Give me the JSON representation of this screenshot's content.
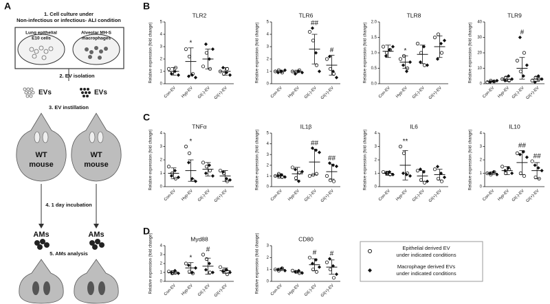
{
  "panel_labels": [
    "A",
    "B",
    "C",
    "D"
  ],
  "diagram": {
    "step1": [
      "1. Cell culture under",
      "Non-infectious or infectious- ALI condition"
    ],
    "cells": [
      [
        "Lung epithelial",
        "E10 cells"
      ],
      [
        "Alveolar MH-S",
        "macrophages"
      ]
    ],
    "step2": "2. EV isolation",
    "ev": [
      "EVs",
      "EVs"
    ],
    "step3": "3. EV instillation",
    "mouse": [
      "WT",
      "mouse"
    ],
    "step4": "4. 1 day incubation",
    "ams": "AMs",
    "step5": "5. AMs analysis"
  },
  "legend": [
    [
      "Epithelial derived EV",
      "under indicated conditions"
    ],
    [
      "Macrophage derived EVs",
      "under indicated conditions"
    ]
  ],
  "chart_data": [
    {
      "type": "dot",
      "title": "TLR2",
      "ylabel": "Relative expression (fold change)",
      "categories": [
        "Con-EV",
        "Hyp-EV",
        "GI(-)-EV",
        "GI(+)-EV"
      ],
      "ylim": [
        0,
        5
      ],
      "yticks": [
        0,
        1,
        2,
        3,
        4,
        5
      ],
      "mean": [
        1.0,
        1.8,
        2.0,
        1.0
      ],
      "sd": [
        0.3,
        1.1,
        0.8,
        0.3
      ],
      "series": [
        {
          "marker": "circle",
          "values": [
            [
              1.2,
              0.9,
              1.3
            ],
            [
              2.8,
              2.2,
              0.8
            ],
            [
              1.4,
              2.5,
              1.2
            ],
            [
              1.0,
              0.8,
              1.2
            ]
          ]
        },
        {
          "marker": "diamond",
          "values": [
            [
              0.8,
              1.0,
              0.7
            ],
            [
              0.6,
              0.7,
              0.5
            ],
            [
              3.2,
              2.0,
              2.8
            ],
            [
              1.3,
              0.9,
              0.7
            ]
          ]
        }
      ],
      "annotations": [
        null,
        "*",
        null,
        null
      ]
    },
    {
      "type": "dot",
      "title": "TLR6",
      "ylabel": "Relative expression (fold change)",
      "categories": [
        "Con-EV",
        "Hyp-EV",
        "GI(-)-EV",
        "GI(+)-EV"
      ],
      "ylim": [
        0,
        5
      ],
      "yticks": [
        0,
        1,
        2,
        3,
        4,
        5
      ],
      "mean": [
        1.0,
        1.0,
        2.8,
        1.5
      ],
      "sd": [
        0.1,
        0.1,
        1.2,
        0.8
      ],
      "series": [
        {
          "marker": "circle",
          "values": [
            [
              1.0,
              1.1,
              0.9
            ],
            [
              1.0,
              0.9,
              1.1
            ],
            [
              4.2,
              3.5,
              1.5
            ],
            [
              2.0,
              1.2,
              0.8
            ]
          ]
        },
        {
          "marker": "diamond",
          "values": [
            [
              0.9,
              1.0,
              1.1
            ],
            [
              0.8,
              1.0,
              0.9
            ],
            [
              4.5,
              2.5,
              1.0
            ],
            [
              2.2,
              1.0,
              0.5
            ]
          ]
        }
      ],
      "annotations": [
        null,
        null,
        "##",
        "#"
      ]
    },
    {
      "type": "dot",
      "title": "TLR8",
      "ylabel": "Relative expression (fold change)",
      "categories": [
        "Con-EV",
        "Hyp-EV",
        "GI(-)-EV",
        "GI(+)-EV"
      ],
      "ylim": [
        0,
        2
      ],
      "yticks": [
        {
          "value": 0,
          "label": "0.0"
        },
        0.5,
        {
          "value": 1,
          "label": "1.0"
        },
        1.5,
        {
          "value": 2,
          "label": "2.0"
        }
      ],
      "mean": [
        1.05,
        0.7,
        0.95,
        1.2
      ],
      "sd": [
        0.2,
        0.2,
        0.3,
        0.35
      ],
      "series": [
        {
          "marker": "circle",
          "values": [
            [
              1.2,
              1.0,
              1.1
            ],
            [
              0.8,
              0.9,
              0.5
            ],
            [
              1.3,
              1.0,
              0.6
            ],
            [
              1.5,
              1.6,
              1.0
            ]
          ]
        },
        {
          "marker": "diamond",
          "values": [
            [
              0.9,
              1.1,
              1.2
            ],
            [
              0.6,
              0.4,
              0.7
            ],
            [
              0.7,
              1.2,
              0.6
            ],
            [
              0.8,
              1.3,
              1.4
            ]
          ]
        }
      ],
      "annotations": [
        null,
        "*",
        null,
        null
      ]
    },
    {
      "type": "dot",
      "title": "TLR9",
      "ylabel": "Relative expression (fold change)",
      "categories": [
        "Con-EV",
        "Hyp-EV",
        "GI(-)-EV",
        "GI(+)-EV"
      ],
      "ylim": [
        0,
        40
      ],
      "yticks": [
        0,
        10,
        20,
        30,
        40
      ],
      "mean": [
        1.5,
        3,
        10,
        3
      ],
      "sd": [
        0.5,
        1.5,
        7,
        1.5
      ],
      "series": [
        {
          "marker": "circle",
          "values": [
            [
              1,
              2,
              1.5
            ],
            [
              3,
              4,
              2
            ],
            [
              15,
              8,
              20
            ],
            [
              2,
              4,
              3
            ]
          ]
        },
        {
          "marker": "diamond",
          "values": [
            [
              1,
              1.5,
              2
            ],
            [
              2,
              5,
              3
            ],
            [
              30,
              5,
              12
            ],
            [
              1,
              5,
              3
            ]
          ]
        }
      ],
      "annotations": [
        null,
        null,
        "#",
        null
      ]
    },
    {
      "type": "dot",
      "title": "TNFα",
      "ylabel": "Relative expression (fold change)",
      "categories": [
        "Con-EV",
        "Hyp-EV",
        "GI(-)-EV",
        "GI(+)-EV"
      ],
      "ylim": [
        0,
        4
      ],
      "yticks": [
        0,
        1,
        2,
        3,
        4
      ],
      "mean": [
        1.0,
        1.2,
        1.3,
        0.8
      ],
      "sd": [
        0.4,
        0.8,
        0.5,
        0.4
      ],
      "series": [
        {
          "marker": "circle",
          "values": [
            [
              1.5,
              1.0,
              0.6
            ],
            [
              3.0,
              2.5,
              0.5
            ],
            [
              1.8,
              1.5,
              1.2
            ],
            [
              1.2,
              1.0,
              0.4
            ]
          ]
        },
        {
          "marker": "diamond",
          "values": [
            [
              0.8,
              1.2,
              0.7
            ],
            [
              1.8,
              0.6,
              0.4
            ],
            [
              1.0,
              1.6,
              0.8
            ],
            [
              1.1,
              0.6,
              0.5
            ]
          ]
        }
      ],
      "annotations": [
        null,
        "*",
        null,
        null
      ]
    },
    {
      "type": "dot",
      "title": "IL1β",
      "ylabel": "Relative expression (fold change)",
      "categories": [
        "Con-EV",
        "Hyp-EV",
        "GI(-)-EV",
        "GI(+)-EV"
      ],
      "ylim": [
        0,
        5
      ],
      "yticks": [
        0,
        1,
        2,
        3,
        4,
        5
      ],
      "mean": [
        1.0,
        1.2,
        2.3,
        1.4
      ],
      "sd": [
        0.2,
        0.6,
        1.2,
        0.7
      ],
      "series": [
        {
          "marker": "circle",
          "values": [
            [
              1.0,
              1.2,
              0.9
            ],
            [
              1.8,
              0.8,
              1.3
            ],
            [
              1.0,
              1.1,
              1.2
            ],
            [
              1.0,
              0.6,
              0.5
            ]
          ]
        },
        {
          "marker": "diamond",
          "values": [
            [
              1.0,
              1.1,
              0.9
            ],
            [
              1.6,
              0.5,
              1.4
            ],
            [
              3.6,
              3.4,
              3.2
            ],
            [
              2.2,
              2.0,
              1.9
            ]
          ]
        }
      ],
      "annotations": [
        null,
        null,
        "##",
        "##"
      ]
    },
    {
      "type": "dot",
      "title": "IL6",
      "ylabel": "Relative expression (fold change)",
      "categories": [
        "Con-EV",
        "Hyp-EV",
        "GI(-)-EV",
        "GI(+)-EV"
      ],
      "ylim": [
        0,
        4
      ],
      "yticks": [
        0,
        1,
        2,
        3,
        4
      ],
      "mean": [
        1.0,
        1.6,
        0.8,
        0.9
      ],
      "sd": [
        0.15,
        1.1,
        0.4,
        0.4
      ],
      "series": [
        {
          "marker": "circle",
          "values": [
            [
              1.1,
              1.0,
              0.9
            ],
            [
              3.0,
              2.5,
              1.0
            ],
            [
              1.2,
              0.5,
              0.3
            ],
            [
              1.3,
              0.6,
              0.4
            ]
          ]
        },
        {
          "marker": "diamond",
          "values": [
            [
              1.0,
              1.1,
              0.9
            ],
            [
              1.0,
              0.9,
              0.8
            ],
            [
              1.3,
              1.1,
              0.4
            ],
            [
              1.5,
              1.0,
              0.7
            ]
          ]
        }
      ],
      "annotations": [
        null,
        "**",
        null,
        null
      ]
    },
    {
      "type": "dot",
      "title": "IL10",
      "ylabel": "Relative expression (fold change)",
      "categories": [
        "Con-EV",
        "Hyp-EV",
        "GI(-)-EV",
        "GI(+)-EV"
      ],
      "ylim": [
        0,
        4
      ],
      "yticks": [
        0,
        1,
        2,
        3,
        4
      ],
      "mean": [
        1.0,
        1.2,
        1.8,
        1.2
      ],
      "sd": [
        0.1,
        0.3,
        0.9,
        0.6
      ],
      "series": [
        {
          "marker": "circle",
          "values": [
            [
              1.0,
              0.9,
              1.1
            ],
            [
              1.5,
              1.0,
              1.3
            ],
            [
              2.5,
              1.0,
              0.8
            ],
            [
              1.9,
              0.7,
              0.6
            ]
          ]
        },
        {
          "marker": "diamond",
          "values": [
            [
              1.0,
              1.1,
              0.9
            ],
            [
              1.2,
              1.4,
              1.0
            ],
            [
              2.4,
              2.6,
              2.2
            ],
            [
              1.6,
              1.4,
              1.2
            ]
          ]
        }
      ],
      "annotations": [
        null,
        null,
        "##",
        "##"
      ]
    },
    {
      "type": "dot",
      "title": "Myd88",
      "ylabel": "Relative expression (fold change)",
      "categories": [
        "Con-EV",
        "Hyp-EV",
        "GI(-)-EV",
        "GI(+)-EV"
      ],
      "ylim": [
        0,
        4
      ],
      "yticks": [
        0,
        1,
        2,
        3,
        4
      ],
      "mean": [
        1.0,
        1.5,
        1.7,
        1.2
      ],
      "sd": [
        0.2,
        0.6,
        0.9,
        0.3
      ],
      "series": [
        {
          "marker": "circle",
          "values": [
            [
              1.1,
              0.9,
              1.0
            ],
            [
              2.0,
              1.1,
              0.9
            ],
            [
              3.0,
              2.5,
              1.0
            ],
            [
              1.6,
              1.2,
              0.8
            ]
          ]
        },
        {
          "marker": "diamond",
          "values": [
            [
              1.0,
              1.2,
              0.9
            ],
            [
              1.8,
              1.0,
              1.5
            ],
            [
              1.3,
              2.0,
              1.0
            ],
            [
              1.1,
              1.3,
              1.0
            ]
          ]
        }
      ],
      "annotations": [
        null,
        "*",
        "#",
        null
      ]
    },
    {
      "type": "dot",
      "title": "CD80",
      "ylabel": "Relative expression (fold change)",
      "categories": [
        "Con-EV",
        "Hyp-EV",
        "GI(-)-EV",
        "GI(+)-EV"
      ],
      "ylim": [
        0,
        3
      ],
      "yticks": [
        0,
        1,
        2,
        3
      ],
      "mean": [
        1.0,
        0.8,
        1.4,
        1.2
      ],
      "sd": [
        0.1,
        0.1,
        0.5,
        0.6
      ],
      "series": [
        {
          "marker": "circle",
          "values": [
            [
              1.0,
              0.9,
              1.1
            ],
            [
              0.9,
              0.8,
              0.7
            ],
            [
              2.0,
              1.0,
              0.8
            ],
            [
              1.6,
              1.0,
              0.3
            ]
          ]
        },
        {
          "marker": "diamond",
          "values": [
            [
              1.0,
              1.1,
              0.9
            ],
            [
              0.8,
              0.9,
              0.7
            ],
            [
              1.5,
              1.8,
              1.2
            ],
            [
              1.9,
              1.3,
              0.6
            ]
          ]
        }
      ],
      "annotations": [
        null,
        null,
        "#",
        "#"
      ]
    }
  ]
}
